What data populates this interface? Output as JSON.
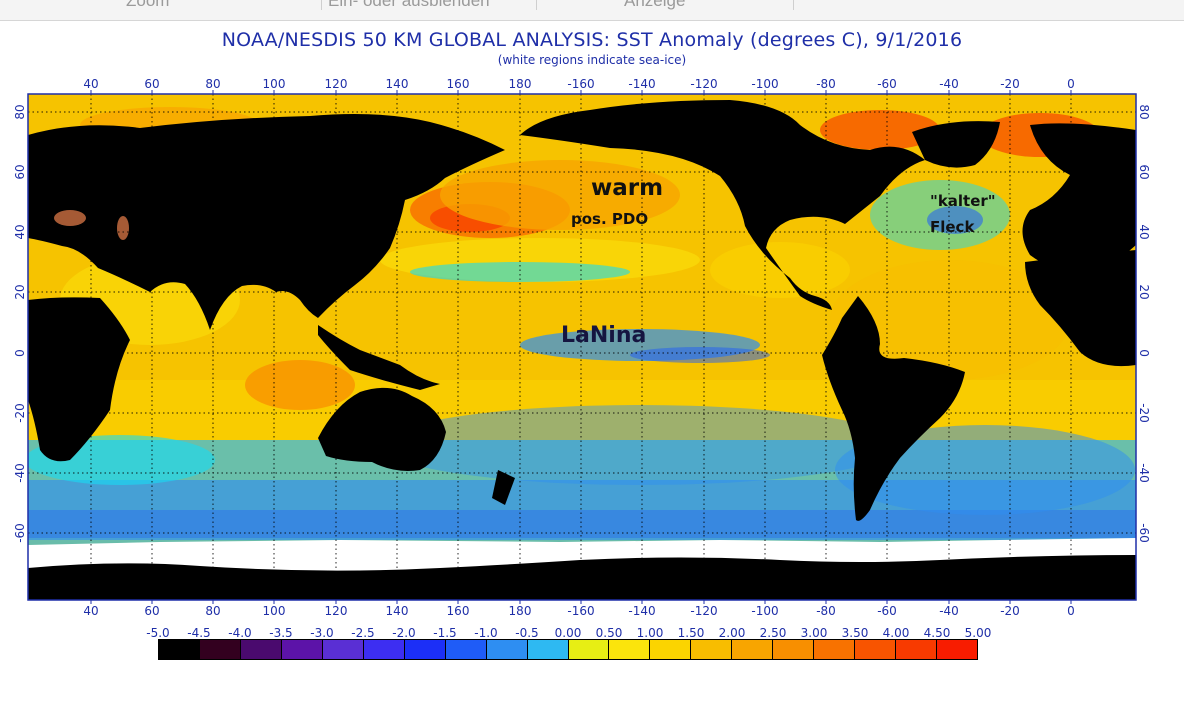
{
  "toolbar": {
    "items": [
      {
        "label": "Zoom"
      },
      {
        "label": "Ein- oder ausblenden"
      },
      {
        "label": "Anzeige"
      }
    ]
  },
  "title": "NOAA/NESDIS 50 KM GLOBAL ANALYSIS: SST Anomaly (degrees C), 9/1/2016",
  "subtitle": "(white regions indicate sea-ice)",
  "map": {
    "longitude_labels": [
      "40",
      "60",
      "80",
      "100",
      "120",
      "140",
      "160",
      "180",
      "-160",
      "-140",
      "-120",
      "-100",
      "-80",
      "-60",
      "-40",
      "-20",
      "0"
    ],
    "latitude_labels": [
      "80",
      "60",
      "40",
      "20",
      "0",
      "-20",
      "-40",
      "-60"
    ],
    "annotations": {
      "warm": "warm",
      "pdo": "pos. PDO",
      "lanina": "LaNina",
      "kalter": "\"kalter\"",
      "fleck": "Fleck"
    },
    "colors": {
      "land": "#000000",
      "sea_ice": "#ffffff",
      "frame": "#1f2fa8",
      "label": "#1f2fa8"
    }
  },
  "colorbar": {
    "labels": [
      "-5.0",
      "-4.5",
      "-4.0",
      "-3.5",
      "-3.0",
      "-2.5",
      "-2.0",
      "-1.5",
      "-1.0",
      "-0.5",
      "0.00",
      "0.50",
      "1.00",
      "1.50",
      "2.00",
      "2.50",
      "3.00",
      "3.50",
      "4.00",
      "4.50",
      "5.00"
    ],
    "colors": [
      "#000000",
      "#33001f",
      "#4a0a6e",
      "#5c13a8",
      "#5a2fd4",
      "#3d2ef2",
      "#1c2ff7",
      "#1f5cf7",
      "#2e8ef2",
      "#2eb9f2",
      "#18dcf3",
      "#e7ee14",
      "#fbe40c",
      "#fbd400",
      "#f8bd00",
      "#f8a500",
      "#f88f00",
      "#f87200",
      "#f85400",
      "#f83a00",
      "#f81c00"
    ]
  }
}
